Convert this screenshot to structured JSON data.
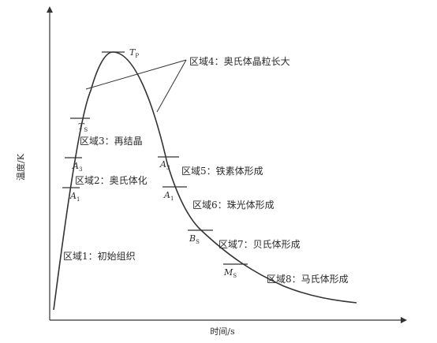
{
  "axes": {
    "x_label": "时间/s",
    "y_label": "温度/K"
  },
  "markers": {
    "tp": {
      "main": "T",
      "sub": "P"
    },
    "ts": {
      "main": "T",
      "sub": "S"
    },
    "a3_heat": {
      "main": "A",
      "sub": "3"
    },
    "a1_heat": {
      "main": "A",
      "sub": "1"
    },
    "a3_cool": {
      "main": "A",
      "sub": "3"
    },
    "a1_cool": {
      "main": "A",
      "sub": "1"
    },
    "bs": {
      "main": "B",
      "sub": "S"
    },
    "ms": {
      "main": "M",
      "sub": "S"
    }
  },
  "regions": {
    "r1": "区域1：初始组织",
    "r2": "区域2：奥氏体化",
    "r3": "区域3：再结晶",
    "r4": "区域4：奥氏体晶粒长大",
    "r5": "区域5：铁素体形成",
    "r6": "区域6：珠光体形成",
    "r7": "区域7：贝氏体形成",
    "r8": "区域8：马氏体形成"
  }
}
